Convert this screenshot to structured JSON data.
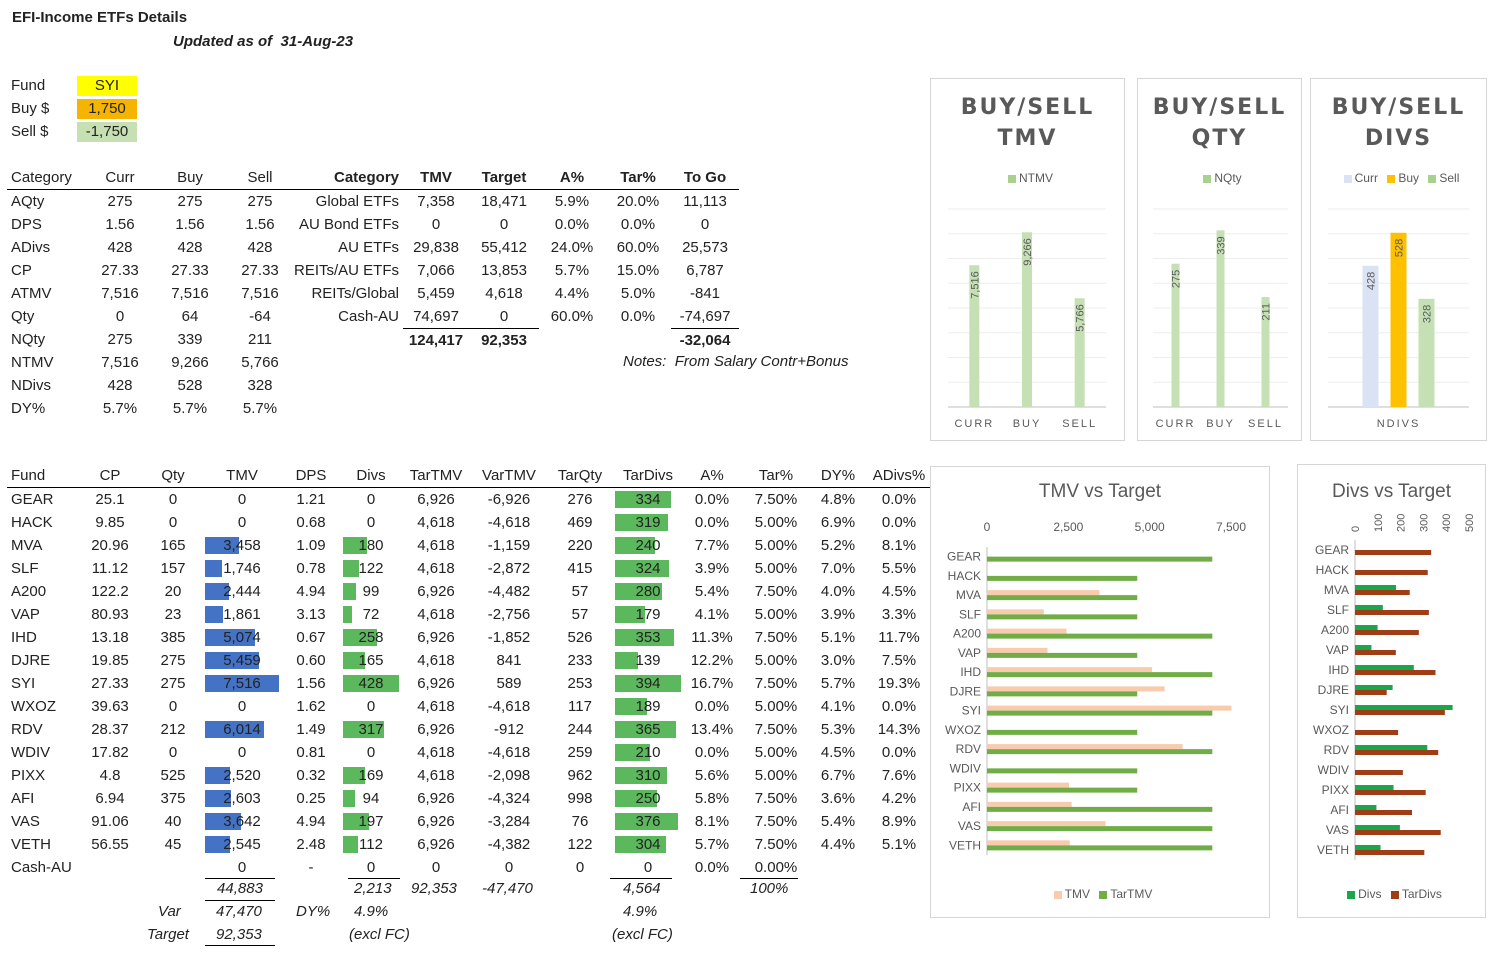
{
  "header": {
    "title": "EFI-Income ETFs Details",
    "updated_label": "Updated as of",
    "updated_date": "31-Aug-23"
  },
  "inputs": {
    "fund_label": "Fund",
    "fund_value": "SYI",
    "buy_label": "Buy $",
    "buy_value": "1,750",
    "sell_label": "Sell $",
    "sell_value": "-1,750"
  },
  "summary": {
    "headers": [
      "Category",
      "Curr",
      "Buy",
      "Sell"
    ],
    "rows": [
      [
        "AQty",
        "275",
        "275",
        "275"
      ],
      [
        "DPS",
        "1.56",
        "1.56",
        "1.56"
      ],
      [
        "ADivs",
        "428",
        "428",
        "428"
      ],
      [
        "CP",
        "27.33",
        "27.33",
        "27.33"
      ],
      [
        "ATMV",
        "7,516",
        "7,516",
        "7,516"
      ],
      [
        "Qty",
        "0",
        "64",
        "-64"
      ],
      [
        "NQty",
        "275",
        "339",
        "211"
      ],
      [
        "NTMV",
        "7,516",
        "9,266",
        "5,766"
      ],
      [
        "NDivs",
        "428",
        "528",
        "328"
      ],
      [
        "DY%",
        "5.7%",
        "5.7%",
        "5.7%"
      ]
    ]
  },
  "category_table": {
    "headers": [
      "Category",
      "TMV",
      "Target",
      "A%",
      "Tar%",
      "To Go"
    ],
    "rows": [
      [
        "Global ETFs",
        "7,358",
        "18,471",
        "5.9%",
        "20.0%",
        "11,113"
      ],
      [
        "AU Bond ETFs",
        "0",
        "0",
        "0.0%",
        "0.0%",
        "0"
      ],
      [
        "AU ETFs",
        "29,838",
        "55,412",
        "24.0%",
        "60.0%",
        "25,573"
      ],
      [
        "REITs/AU ETFs",
        "7,066",
        "13,853",
        "5.7%",
        "15.0%",
        "6,787"
      ],
      [
        "REITs/Global",
        "5,459",
        "4,618",
        "4.4%",
        "5.0%",
        "-841"
      ],
      [
        "Cash-AU",
        "74,697",
        "0",
        "60.0%",
        "0.0%",
        "-74,697"
      ]
    ],
    "totals": {
      "tmv": "124,417",
      "target": "92,353",
      "togo": "-32,064"
    },
    "notes_label": "Notes:",
    "notes_text": "From Salary Contr+Bonus"
  },
  "fund_table": {
    "headers": [
      "Fund",
      "CP",
      "Qty",
      "TMV",
      "DPS",
      "Divs",
      "TarTMV",
      "VarTMV",
      "TarQty",
      "TarDivs",
      "A%",
      "Tar%",
      "DY%",
      "ADivs%"
    ],
    "rows": [
      [
        "GEAR",
        "25.1",
        "0",
        "0",
        "1.21",
        "0",
        "6,926",
        "-6,926",
        "276",
        "334",
        "0.0%",
        "7.50%",
        "4.8%",
        "0.0%"
      ],
      [
        "HACK",
        "9.85",
        "0",
        "0",
        "0.68",
        "0",
        "4,618",
        "-4,618",
        "469",
        "319",
        "0.0%",
        "5.00%",
        "6.9%",
        "0.0%"
      ],
      [
        "MVA",
        "20.96",
        "165",
        "3,458",
        "1.09",
        "180",
        "4,618",
        "-1,159",
        "220",
        "240",
        "7.7%",
        "5.00%",
        "5.2%",
        "8.1%"
      ],
      [
        "SLF",
        "11.12",
        "157",
        "1,746",
        "0.78",
        "122",
        "4,618",
        "-2,872",
        "415",
        "324",
        "3.9%",
        "5.00%",
        "7.0%",
        "5.5%"
      ],
      [
        "A200",
        "122.2",
        "20",
        "2,444",
        "4.94",
        "99",
        "6,926",
        "-4,482",
        "57",
        "280",
        "5.4%",
        "7.50%",
        "4.0%",
        "4.5%"
      ],
      [
        "VAP",
        "80.93",
        "23",
        "1,861",
        "3.13",
        "72",
        "4,618",
        "-2,756",
        "57",
        "179",
        "4.1%",
        "5.00%",
        "3.9%",
        "3.3%"
      ],
      [
        "IHD",
        "13.18",
        "385",
        "5,074",
        "0.67",
        "258",
        "6,926",
        "-1,852",
        "526",
        "353",
        "11.3%",
        "7.50%",
        "5.1%",
        "11.7%"
      ],
      [
        "DJRE",
        "19.85",
        "275",
        "5,459",
        "0.60",
        "165",
        "4,618",
        "841",
        "233",
        "139",
        "12.2%",
        "5.00%",
        "3.0%",
        "7.5%"
      ],
      [
        "SYI",
        "27.33",
        "275",
        "7,516",
        "1.56",
        "428",
        "6,926",
        "589",
        "253",
        "394",
        "16.7%",
        "7.50%",
        "5.7%",
        "19.3%"
      ],
      [
        "WXOZ",
        "39.63",
        "0",
        "0",
        "1.62",
        "0",
        "4,618",
        "-4,618",
        "117",
        "189",
        "0.0%",
        "5.00%",
        "4.1%",
        "0.0%"
      ],
      [
        "RDV",
        "28.37",
        "212",
        "6,014",
        "1.49",
        "317",
        "6,926",
        "-912",
        "244",
        "365",
        "13.4%",
        "7.50%",
        "5.3%",
        "14.3%"
      ],
      [
        "WDIV",
        "17.82",
        "0",
        "0",
        "0.81",
        "0",
        "4,618",
        "-4,618",
        "259",
        "210",
        "0.0%",
        "5.00%",
        "4.5%",
        "0.0%"
      ],
      [
        "PIXX",
        "4.8",
        "525",
        "2,520",
        "0.32",
        "169",
        "4,618",
        "-2,098",
        "962",
        "310",
        "5.6%",
        "5.00%",
        "6.7%",
        "7.6%"
      ],
      [
        "AFI",
        "6.94",
        "375",
        "2,603",
        "0.25",
        "94",
        "6,926",
        "-4,324",
        "998",
        "250",
        "5.8%",
        "7.50%",
        "3.6%",
        "4.2%"
      ],
      [
        "VAS",
        "91.06",
        "40",
        "3,642",
        "4.94",
        "197",
        "6,926",
        "-3,284",
        "76",
        "376",
        "8.1%",
        "7.50%",
        "5.4%",
        "8.9%"
      ],
      [
        "VETH",
        "56.55",
        "45",
        "2,545",
        "2.48",
        "112",
        "6,926",
        "-4,382",
        "122",
        "304",
        "5.7%",
        "7.50%",
        "4.4%",
        "5.1%"
      ],
      [
        "Cash-AU",
        "",
        "",
        "0",
        "-",
        "0",
        "0",
        "0",
        "0",
        "0",
        "0.0%",
        "0.00%",
        "",
        ""
      ]
    ],
    "totals": {
      "tmv": "44,883",
      "divs": "2,213",
      "tartmv": "92,353",
      "vartmv": "-47,470",
      "tardivs": "4,564",
      "tarpct": "100%"
    },
    "var_label": "Var",
    "var_value": "47,470",
    "target_label": "Target",
    "target_value": "92,353",
    "dy_label": "DY%",
    "dy_value": "4.9%",
    "dy_note": "(excl FC)",
    "dy2_value": "4.9%",
    "dy2_note": "(excl FC)"
  },
  "colors": {
    "blue_bar": "#4472c4",
    "green_bar": "#5cb85c",
    "light_green": "#a9d18e",
    "yellow": "#ffc000",
    "light_blue": "#dae3f3",
    "peach": "#f8cbad",
    "dark_green": "#70ad47",
    "brown": "#9e3d16",
    "teal_green": "#1aa64b"
  },
  "chart_data": [
    {
      "type": "bar",
      "title": "BUY/SELL TMV",
      "categories": [
        "CURR",
        "BUY",
        "SELL"
      ],
      "series": [
        {
          "name": "NTMV",
          "values": [
            7516,
            9266,
            5766
          ]
        }
      ],
      "ylim": [
        0,
        10500
      ]
    },
    {
      "type": "bar",
      "title": "BUY/SELL QTY",
      "categories": [
        "CURR",
        "BUY",
        "SELL"
      ],
      "series": [
        {
          "name": "NQty",
          "values": [
            275,
            339,
            211
          ]
        }
      ],
      "ylim": [
        0,
        380
      ]
    },
    {
      "type": "bar",
      "title": "BUY/SELL DIVS",
      "categories": [
        "NDIVS"
      ],
      "series": [
        {
          "name": "Curr",
          "values": [
            428
          ]
        },
        {
          "name": "Buy",
          "values": [
            528
          ]
        },
        {
          "name": "Sell",
          "values": [
            328
          ]
        }
      ],
      "ylim": [
        0,
        600
      ]
    },
    {
      "type": "bar",
      "orientation": "horizontal",
      "title": "TMV vs Target",
      "categories": [
        "GEAR",
        "HACK",
        "MVA",
        "SLF",
        "A200",
        "VAP",
        "IHD",
        "DJRE",
        "SYI",
        "WXOZ",
        "RDV",
        "WDIV",
        "PIXX",
        "AFI",
        "VAS",
        "VETH"
      ],
      "series": [
        {
          "name": "TMV",
          "values": [
            0,
            0,
            3458,
            1746,
            2444,
            1861,
            5074,
            5459,
            7516,
            0,
            6014,
            0,
            2520,
            2603,
            3642,
            2545
          ]
        },
        {
          "name": "TarTMV",
          "values": [
            6926,
            4618,
            4618,
            4618,
            6926,
            4618,
            6926,
            4618,
            6926,
            4618,
            6926,
            4618,
            4618,
            6926,
            6926,
            6926
          ]
        }
      ],
      "xticks": [
        "0",
        "2,500",
        "5,000",
        "7,500"
      ],
      "xlim": [
        0,
        7500
      ]
    },
    {
      "type": "bar",
      "orientation": "horizontal",
      "title": "Divs vs Target",
      "categories": [
        "GEAR",
        "HACK",
        "MVA",
        "SLF",
        "A200",
        "VAP",
        "IHD",
        "DJRE",
        "SYI",
        "WXOZ",
        "RDV",
        "WDIV",
        "PIXX",
        "AFI",
        "VAS",
        "VETH"
      ],
      "series": [
        {
          "name": "Divs",
          "values": [
            0,
            0,
            180,
            122,
            99,
            72,
            258,
            165,
            428,
            0,
            317,
            0,
            169,
            94,
            197,
            112
          ]
        },
        {
          "name": "TarDivs",
          "values": [
            334,
            319,
            240,
            324,
            280,
            179,
            353,
            139,
            394,
            189,
            365,
            210,
            310,
            250,
            376,
            304
          ]
        }
      ],
      "xticks": [
        "0",
        "100",
        "200",
        "300",
        "400",
        "500"
      ],
      "xlim": [
        0,
        500
      ]
    }
  ]
}
